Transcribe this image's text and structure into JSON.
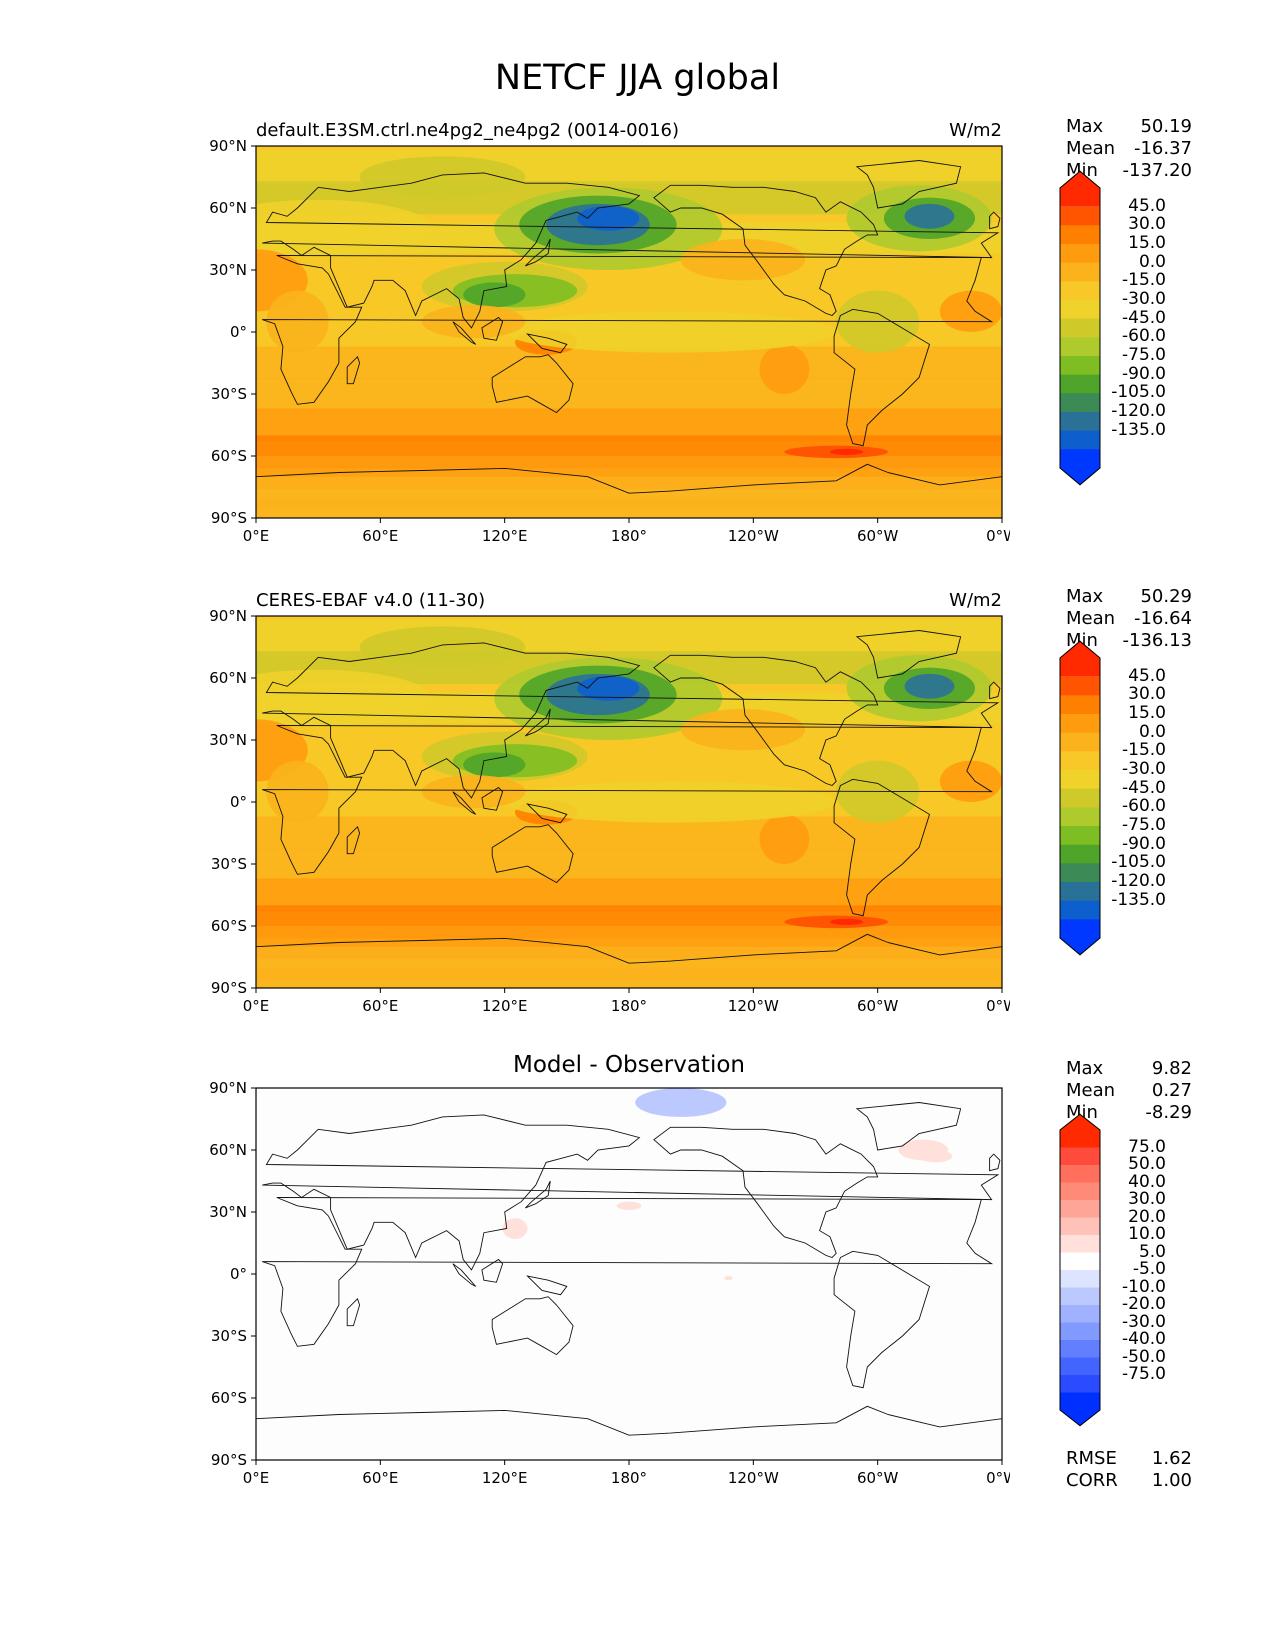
{
  "title": "NETCF JJA global",
  "x_ticks": [
    "0°E",
    "60°E",
    "120°E",
    "180°",
    "120°W",
    "60°W",
    "0°W"
  ],
  "y_ticks": [
    "90°N",
    "60°N",
    "30°N",
    "0°",
    "30°S",
    "60°S",
    "90°S"
  ],
  "panels": [
    {
      "left_title": "default.E3SM.ctrl.ne4pg2_ne4pg2 (0014-0016)",
      "center_title": "",
      "units": "W/m2",
      "stats": {
        "max_label": "Max",
        "max": "50.19",
        "mean_label": "Mean",
        "mean": "-16.37",
        "min_label": "Min",
        "min": "-137.20"
      },
      "colorbar_ticks": [
        "45.0",
        "30.0",
        "15.0",
        "0.0",
        "-15.0",
        "-30.0",
        "-45.0",
        "-60.0",
        "-75.0",
        "-90.0",
        "-105.0",
        "-120.0",
        "-135.0"
      ]
    },
    {
      "left_title": "CERES-EBAF v4.0 (11-30)",
      "center_title": "",
      "units": "W/m2",
      "stats": {
        "max_label": "Max",
        "max": "50.29",
        "mean_label": "Mean",
        "mean": "-16.64",
        "min_label": "Min",
        "min": "-136.13"
      },
      "colorbar_ticks": [
        "45.0",
        "30.0",
        "15.0",
        "0.0",
        "-15.0",
        "-30.0",
        "-45.0",
        "-60.0",
        "-75.0",
        "-90.0",
        "-105.0",
        "-120.0",
        "-135.0"
      ]
    },
    {
      "left_title": "",
      "center_title": "Model - Observation",
      "units": "",
      "stats": {
        "max_label": "Max",
        "max": "9.82",
        "mean_label": "Mean",
        "mean": "0.27",
        "min_label": "Min",
        "min": "-8.29"
      },
      "colorbar_ticks": [
        "75.0",
        "50.0",
        "40.0",
        "30.0",
        "20.0",
        "10.0",
        "5.0",
        "-5.0",
        "-10.0",
        "-20.0",
        "-30.0",
        "-40.0",
        "-50.0",
        "-75.0"
      ],
      "extra_stats": {
        "rmse_label": "RMSE",
        "rmse": "1.62",
        "corr_label": "CORR",
        "corr": "1.00"
      }
    }
  ],
  "colormaps": {
    "netcf": [
      "#ff2a00",
      "#ff5500",
      "#ff7f00",
      "#ff9b0f",
      "#fbb21c",
      "#f7c827",
      "#efd22a",
      "#cfc92a",
      "#aeca2d",
      "#7fbe22",
      "#4fa42a",
      "#3c8a55",
      "#2a7197",
      "#0e5fce",
      "#0038ff"
    ],
    "diff": [
      "#ff2a00",
      "#ff4b3c",
      "#ff6f5c",
      "#ff8a78",
      "#ffa598",
      "#ffc2b8",
      "#ffe0da",
      "#ffffff",
      "#dde4ff",
      "#bcc9ff",
      "#a0b2ff",
      "#8299ff",
      "#617fff",
      "#4264ff",
      "#2a4bff",
      "#0030ff"
    ]
  },
  "chart_data": [
    {
      "type": "heatmap",
      "name": "",
      "field": "NETCF",
      "season": "JJA",
      "units": "W/m2",
      "xlim": [
        0,
        360
      ],
      "ylim": [
        -90,
        90
      ],
      "levels": [
        -135,
        -120,
        -105,
        -90,
        -75,
        -60,
        -45,
        -30,
        -15,
        0,
        15,
        30,
        45
      ],
      "max": 50.19,
      "mean": -16.37,
      "min": -137.2
    },
    {
      "type": "heatmap",
      "name": "",
      "field": "NETCF",
      "season": "JJA",
      "units": "W/m2",
      "xlim": [
        0,
        360
      ],
      "ylim": [
        -90,
        90
      ],
      "levels": [
        -135,
        -120,
        -105,
        -90,
        -75,
        -60,
        -45,
        -30,
        -15,
        0,
        15,
        30,
        45
      ],
      "max": 50.29,
      "mean": -16.64,
      "min": -136.13
    },
    {
      "type": "heatmap",
      "name": "Model - Observation",
      "field": "NETCF",
      "season": "JJA",
      "xlim": [
        0,
        360
      ],
      "ylim": [
        -90,
        90
      ],
      "levels": [
        -75,
        -50,
        -40,
        -30,
        -20,
        -10,
        -5,
        5,
        10,
        20,
        30,
        40,
        50,
        75
      ],
      "max": 9.82,
      "mean": 0.27,
      "min": -8.29,
      "rmse": 1.62,
      "corr": 1.0
    }
  ]
}
